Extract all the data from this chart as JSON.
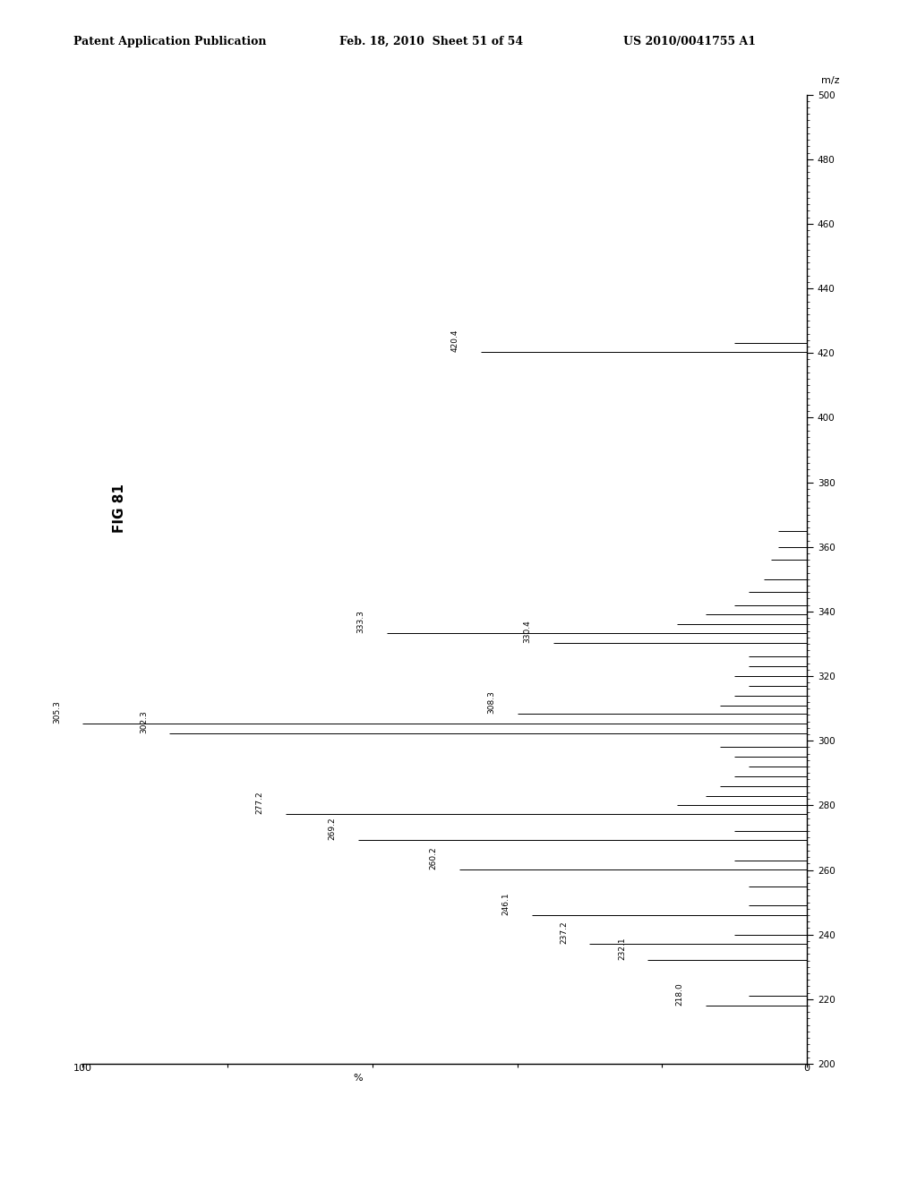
{
  "header_left": "Patent Application Publication",
  "header_mid": "Feb. 18, 2010  Sheet 51 of 54",
  "header_right": "US 2010/0041755 A1",
  "fig_label": "FIG 81",
  "mz_min": 200,
  "mz_max": 500,
  "intensity_min": 0,
  "intensity_max": 100,
  "peaks": [
    {
      "mz": 218.0,
      "intensity": 14,
      "label": "218.0"
    },
    {
      "mz": 221.0,
      "intensity": 8,
      "label": ""
    },
    {
      "mz": 232.1,
      "intensity": 22,
      "label": "232.1"
    },
    {
      "mz": 237.2,
      "intensity": 30,
      "label": "237.2"
    },
    {
      "mz": 240.0,
      "intensity": 10,
      "label": ""
    },
    {
      "mz": 246.1,
      "intensity": 38,
      "label": "246.1"
    },
    {
      "mz": 249.0,
      "intensity": 8,
      "label": ""
    },
    {
      "mz": 255.0,
      "intensity": 8,
      "label": ""
    },
    {
      "mz": 260.2,
      "intensity": 48,
      "label": "260.2"
    },
    {
      "mz": 263.0,
      "intensity": 10,
      "label": ""
    },
    {
      "mz": 269.2,
      "intensity": 62,
      "label": "269.2"
    },
    {
      "mz": 272.0,
      "intensity": 10,
      "label": ""
    },
    {
      "mz": 277.2,
      "intensity": 72,
      "label": "277.2"
    },
    {
      "mz": 280.0,
      "intensity": 18,
      "label": ""
    },
    {
      "mz": 283.0,
      "intensity": 14,
      "label": ""
    },
    {
      "mz": 286.0,
      "intensity": 12,
      "label": ""
    },
    {
      "mz": 289.0,
      "intensity": 10,
      "label": ""
    },
    {
      "mz": 292.0,
      "intensity": 8,
      "label": ""
    },
    {
      "mz": 295.0,
      "intensity": 10,
      "label": ""
    },
    {
      "mz": 298.0,
      "intensity": 12,
      "label": ""
    },
    {
      "mz": 302.3,
      "intensity": 88,
      "label": "302.3"
    },
    {
      "mz": 305.3,
      "intensity": 100,
      "label": "305.3"
    },
    {
      "mz": 308.3,
      "intensity": 40,
      "label": "308.3"
    },
    {
      "mz": 311.0,
      "intensity": 12,
      "label": ""
    },
    {
      "mz": 314.0,
      "intensity": 10,
      "label": ""
    },
    {
      "mz": 317.0,
      "intensity": 8,
      "label": ""
    },
    {
      "mz": 320.0,
      "intensity": 10,
      "label": ""
    },
    {
      "mz": 323.0,
      "intensity": 8,
      "label": ""
    },
    {
      "mz": 326.0,
      "intensity": 8,
      "label": ""
    },
    {
      "mz": 330.4,
      "intensity": 35,
      "label": "330.4"
    },
    {
      "mz": 333.3,
      "intensity": 58,
      "label": "333.3"
    },
    {
      "mz": 336.0,
      "intensity": 18,
      "label": ""
    },
    {
      "mz": 339.0,
      "intensity": 14,
      "label": ""
    },
    {
      "mz": 342.0,
      "intensity": 10,
      "label": ""
    },
    {
      "mz": 346.0,
      "intensity": 8,
      "label": ""
    },
    {
      "mz": 350.0,
      "intensity": 6,
      "label": ""
    },
    {
      "mz": 356.0,
      "intensity": 5,
      "label": ""
    },
    {
      "mz": 360.0,
      "intensity": 4,
      "label": ""
    },
    {
      "mz": 365.0,
      "intensity": 4,
      "label": ""
    },
    {
      "mz": 420.4,
      "intensity": 45,
      "label": "420.4"
    },
    {
      "mz": 423.0,
      "intensity": 10,
      "label": ""
    }
  ],
  "background_color": "#ffffff",
  "line_color": "#000000"
}
